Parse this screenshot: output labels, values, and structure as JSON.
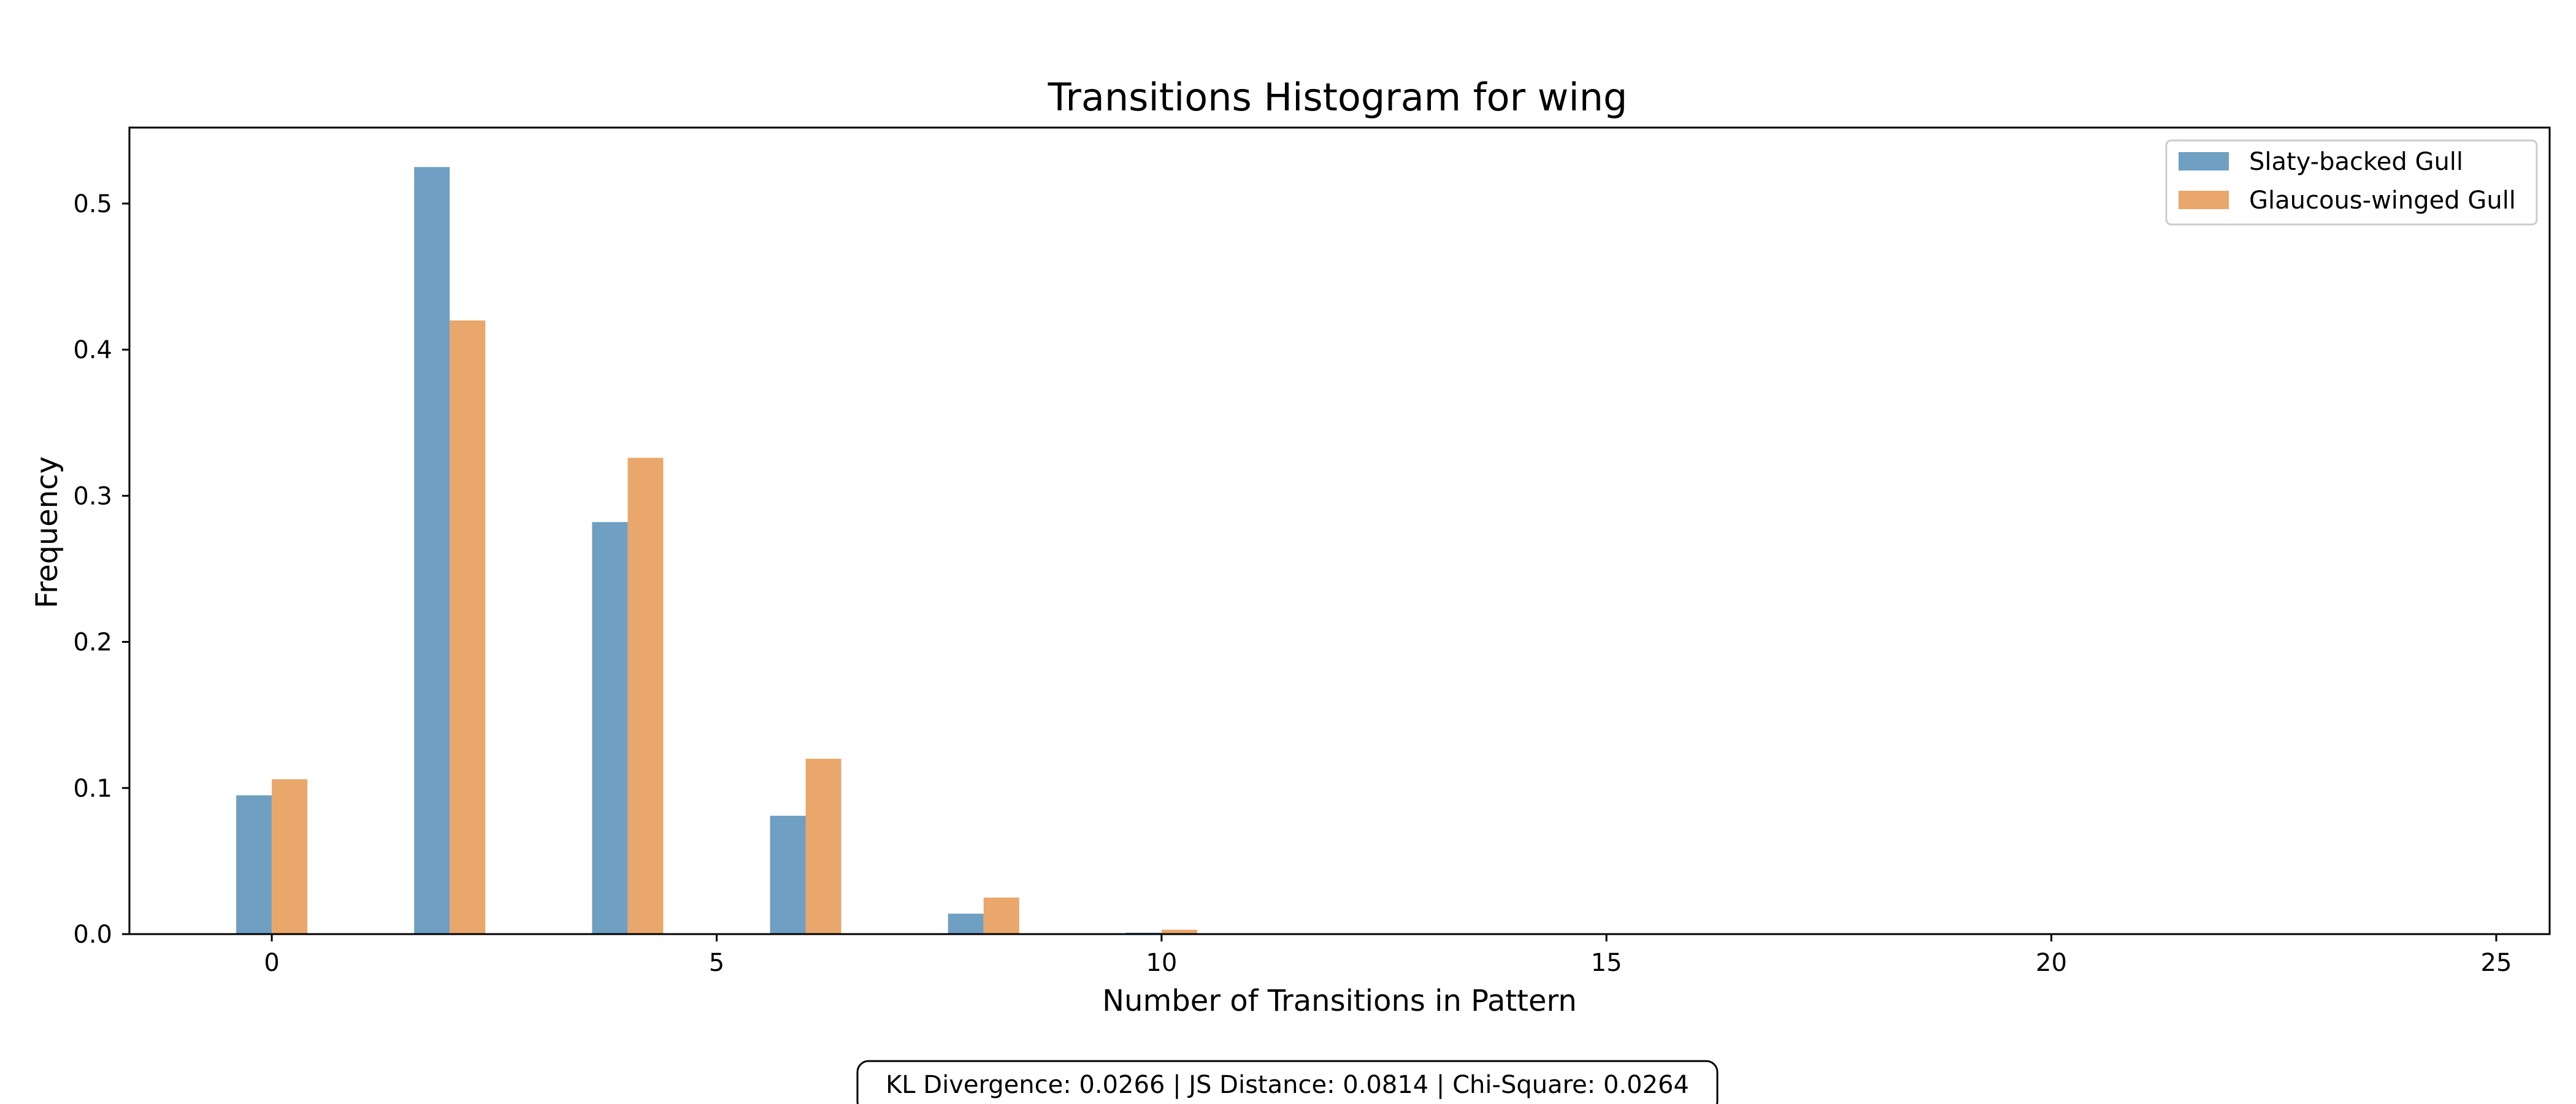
{
  "chart_data": {
    "type": "bar",
    "title": "Transitions Histogram for wing",
    "xlabel": "Number of Transitions in Pattern",
    "ylabel": "Frequency",
    "xlim": [
      -1.6,
      25.6
    ],
    "ylim": [
      0,
      0.552
    ],
    "x_ticks": [
      0,
      5,
      10,
      15,
      20,
      25
    ],
    "y_ticks": [
      0.0,
      0.1,
      0.2,
      0.3,
      0.4,
      0.5
    ],
    "bar_width": 0.4,
    "x": [
      0,
      2,
      4,
      6,
      8,
      10
    ],
    "series": [
      {
        "name": "Slaty-backed Gull",
        "color": "#6f9fc2",
        "values": [
          0.095,
          0.525,
          0.282,
          0.081,
          0.014,
          0.001
        ]
      },
      {
        "name": "Glaucous-winged Gull",
        "color": "#e9a76b",
        "values": [
          0.106,
          0.42,
          0.326,
          0.12,
          0.025,
          0.003
        ]
      }
    ],
    "grid": false,
    "legend_position": "top-right"
  },
  "stats_box": "KL Divergence: 0.0266 | JS Distance: 0.0814 | Chi-Square: 0.0264"
}
